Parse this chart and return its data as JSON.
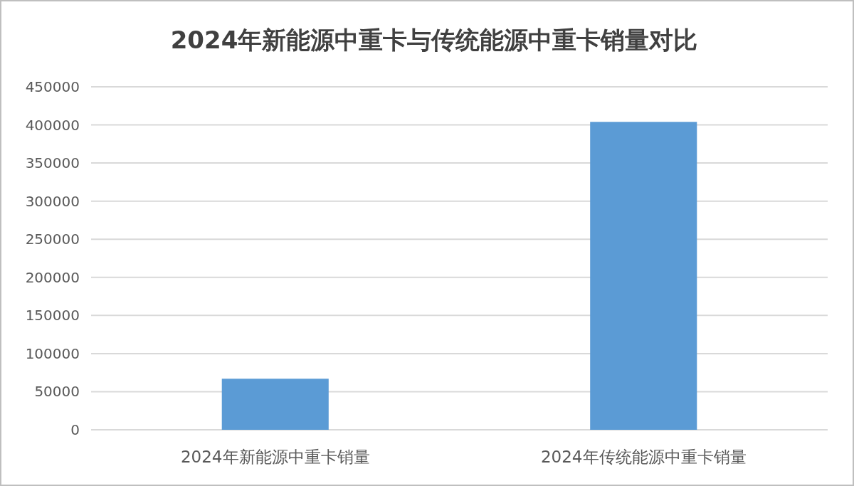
{
  "chart_data": {
    "type": "bar",
    "title": "2024年新能源中重卡与传统能源中重卡销量对比",
    "categories": [
      "2024年新能源中重卡销量",
      "2024年传统能源中重卡销量"
    ],
    "values": [
      67000,
      404000
    ],
    "color": "#5b9bd5",
    "ylim": [
      0,
      450000
    ],
    "yticks": [
      0,
      50000,
      100000,
      150000,
      200000,
      250000,
      300000,
      350000,
      400000,
      450000
    ],
    "grid": "y"
  }
}
